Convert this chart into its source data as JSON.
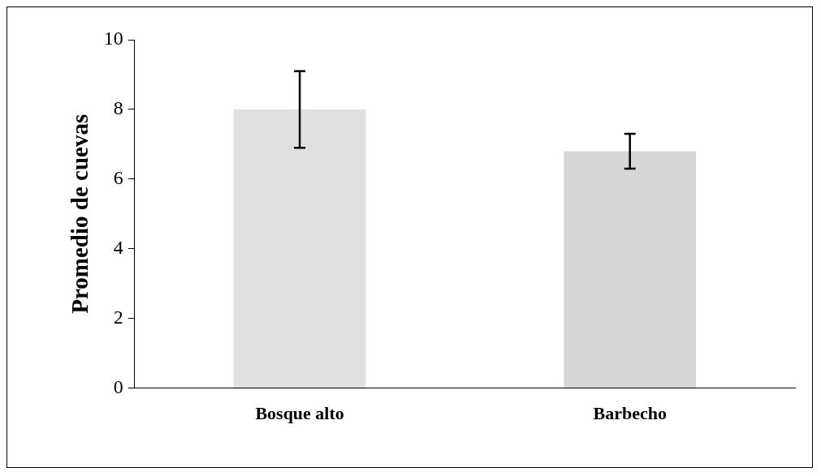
{
  "chart_data": {
    "type": "bar",
    "ylabel": "Promedio de cuevas",
    "categories": [
      "Bosque alto",
      "Barbecho"
    ],
    "values": [
      8.0,
      6.8
    ],
    "colors": [
      "#e0e0e0",
      "#d6d6d6"
    ],
    "errors": [
      1.1,
      0.5
    ],
    "ylim": [
      0,
      10
    ],
    "yticks": [
      0,
      2,
      4,
      6,
      8,
      10
    ],
    "grid": false,
    "legend": false
  }
}
